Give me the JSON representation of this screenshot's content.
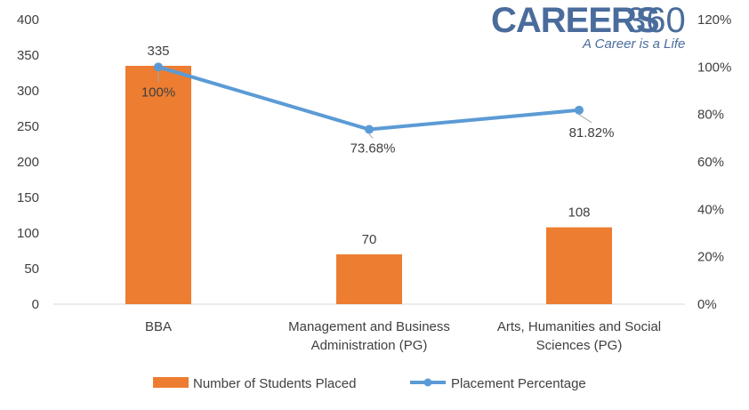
{
  "brand": {
    "name": "CAREERS",
    "number": "360",
    "tagline": "A Career is a Life"
  },
  "chart_data": {
    "type": "bar",
    "categories": [
      [
        "BBA"
      ],
      [
        "Management and Business",
        "Administration (PG)"
      ],
      [
        "Arts, Humanities and Social",
        "Sciences (PG)"
      ]
    ],
    "series": [
      {
        "name": "Number of Students Placed",
        "type": "bar",
        "axis": "left",
        "color": "#ed7d31",
        "values": [
          335,
          70,
          108
        ],
        "labels": [
          "335",
          "70",
          "108"
        ]
      },
      {
        "name": "Placement Percentage",
        "type": "line",
        "axis": "right",
        "color": "#5b9bd5",
        "values": [
          100,
          73.68,
          81.82
        ],
        "labels": [
          "100%",
          "73.68%",
          "81.82%"
        ]
      }
    ],
    "y_left": {
      "min": 0,
      "max": 400,
      "ticks": [
        "0",
        "50",
        "100",
        "150",
        "200",
        "250",
        "300",
        "350",
        "400"
      ]
    },
    "y_right": {
      "min": 0,
      "max": 120,
      "ticks": [
        "0%",
        "20%",
        "40%",
        "60%",
        "80%",
        "100%",
        "120%"
      ]
    },
    "grid": false,
    "legend_position": "bottom"
  }
}
